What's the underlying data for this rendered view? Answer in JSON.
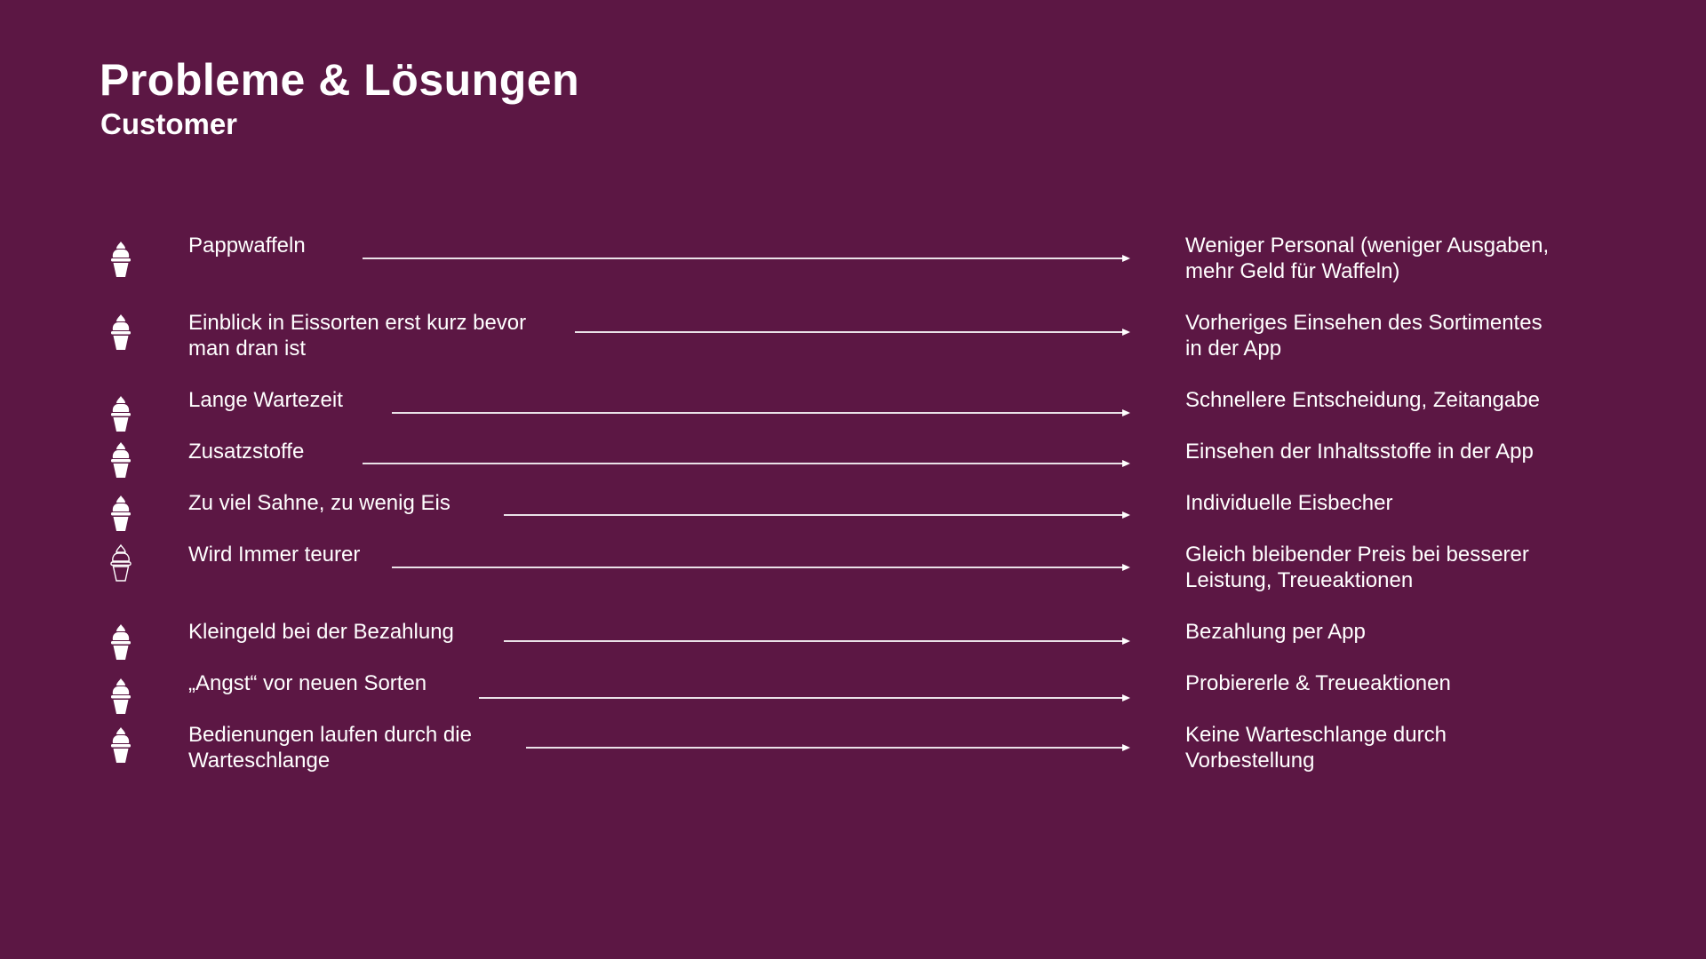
{
  "slide": {
    "title": "Probleme & Lösungen",
    "subtitle": "Customer"
  },
  "colors": {
    "background": "#5c1744",
    "text": "#ffffff"
  },
  "icon_name": "ice-cream-cone-icon",
  "items": [
    {
      "problem": "Pappwaffeln",
      "solution": "Weniger Personal (weniger Ausgaben,\nmehr Geld für Waffeln)",
      "icon_style": "filled"
    },
    {
      "problem": "Einblick in Eissorten erst kurz bevor\nman dran ist",
      "solution": "Vorheriges Einsehen des Sortimentes\nin der App",
      "icon_style": "filled"
    },
    {
      "problem": "Lange Wartezeit",
      "solution": "Schnellere Entscheidung, Zeitangabe",
      "icon_style": "filled"
    },
    {
      "problem": "Zusatzstoffe",
      "solution": "Einsehen der Inhaltsstoffe in der App",
      "icon_style": "filled"
    },
    {
      "problem": "Zu viel Sahne, zu wenig Eis",
      "solution": "Individuelle Eisbecher",
      "icon_style": "filled"
    },
    {
      "problem": "Wird Immer teurer",
      "solution": "Gleich bleibender Preis bei besserer\nLeistung, Treueaktionen",
      "icon_style": "outline"
    },
    {
      "problem": "Kleingeld bei der Bezahlung",
      "solution": "Bezahlung per App",
      "icon_style": "filled"
    },
    {
      "problem": "„Angst“ vor neuen Sorten",
      "solution": "Probiererle & Treueaktionen",
      "icon_style": "filled"
    },
    {
      "problem": "Bedienungen laufen durch die\nWarteschlange",
      "solution": "Keine Warteschlange durch\nVorbestellung",
      "icon_style": "filled"
    }
  ]
}
